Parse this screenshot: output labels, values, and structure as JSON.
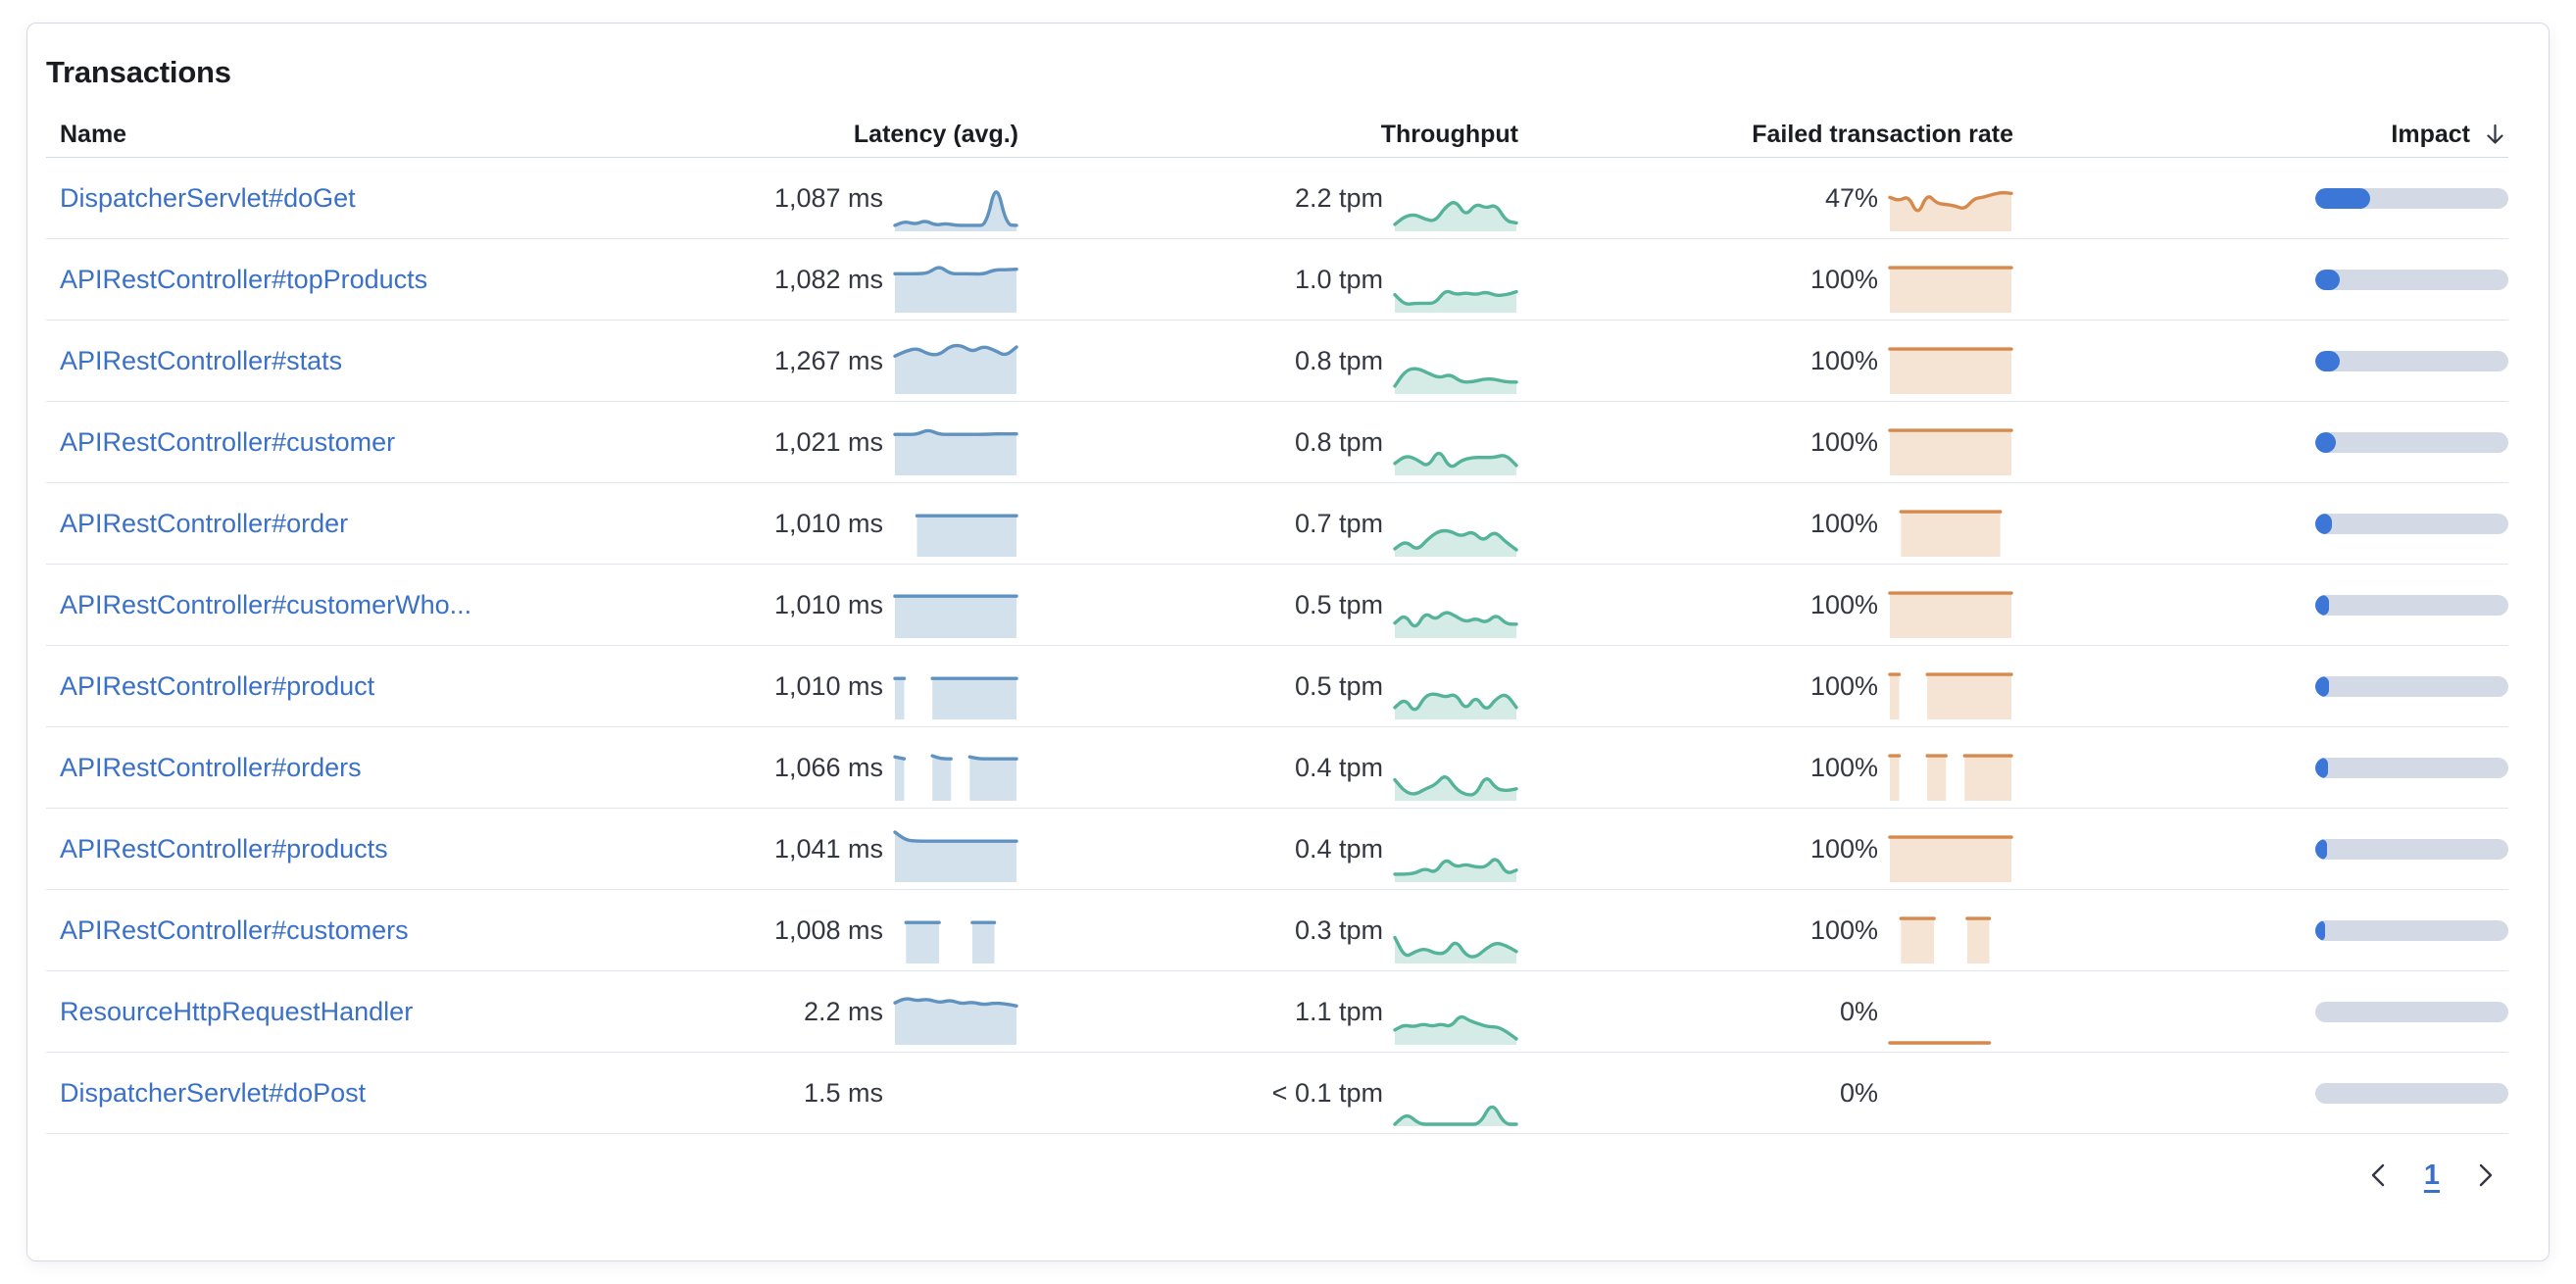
{
  "card": {
    "title": "Transactions"
  },
  "columns": {
    "name": "Name",
    "latency": "Latency (avg.)",
    "throughput": "Throughput",
    "failed": "Failed transaction rate",
    "impact": "Impact"
  },
  "pagination": {
    "current_page": "1"
  },
  "icons": {
    "sort": "sort-descending-arrow",
    "prev": "chevron-left",
    "next": "chevron-right"
  },
  "colors": {
    "link_blue": "#3A70C8",
    "impact_fill_blue": "#3C77D8",
    "impact_track_gray": "#D3DAE5",
    "latency_line": "#6092C0",
    "latency_fill": "rgba(96,146,192,0.28)",
    "throughput_line": "#54B399",
    "throughput_fill": "rgba(84,179,153,0.25)",
    "failed_line": "#D6894C",
    "failed_fill": "rgba(214,137,76,0.24)",
    "text_dark": "#343741",
    "heading_dark": "#1A1C21",
    "card_border": "#D3DAE6",
    "row_border": "#E0E5EE"
  },
  "rows": [
    {
      "name": "DispatcherServlet#doGet",
      "latency": "1,087 ms",
      "throughput": "2.2 tpm",
      "failed_rate": "47%",
      "impact_pct": 28.5,
      "latency_spark": [
        8,
        16,
        10,
        18,
        8,
        12,
        8,
        8,
        8,
        8,
        97,
        9,
        8
      ],
      "throughput_spark": [
        10,
        26,
        30,
        20,
        16,
        45,
        58,
        26,
        52,
        42,
        50,
        16,
        13
      ],
      "failed_spark": [
        64,
        57,
        67,
        27,
        72,
        52,
        50,
        47,
        40,
        62,
        64,
        70,
        74,
        72
      ]
    },
    {
      "name": "APIRestController#topProducts",
      "latency": "1,082 ms",
      "throughput": "1.0 tpm",
      "failed_rate": "100%",
      "impact_pct": 12.5,
      "latency_spark": [
        74,
        74,
        74,
        75,
        90,
        74,
        74,
        74,
        73,
        82,
        82,
        83
      ],
      "throughput_spark": [
        32,
        12,
        15,
        15,
        15,
        42,
        32,
        36,
        32,
        38,
        30,
        32,
        38
      ],
      "failed_spark": [
        86,
        86,
        86,
        86,
        86,
        86,
        86,
        86,
        86,
        86,
        86,
        86
      ]
    },
    {
      "name": "APIRestController#stats",
      "latency": "1,267 ms",
      "throughput": "0.8 tpm",
      "failed_rate": "100%",
      "impact_pct": 12.5,
      "latency_spark": [
        72,
        82,
        88,
        76,
        74,
        92,
        94,
        80,
        92,
        84,
        72,
        90
      ],
      "throughput_spark": [
        12,
        44,
        48,
        38,
        28,
        36,
        20,
        20,
        26,
        26,
        20,
        20
      ],
      "failed_spark": [
        86,
        86,
        86,
        86,
        86,
        86,
        86,
        86,
        86,
        86,
        86,
        86
      ]
    },
    {
      "name": "APIRestController#customer",
      "latency": "1,021 ms",
      "throughput": "0.8 tpm",
      "failed_rate": "100%",
      "impact_pct": 10.5,
      "latency_spark": [
        78,
        78,
        78,
        88,
        78,
        78,
        78,
        78,
        78,
        79,
        79,
        79
      ],
      "throughput_spark": [
        20,
        36,
        28,
        12,
        50,
        8,
        26,
        32,
        32,
        32,
        38,
        16
      ],
      "failed_spark": [
        86,
        86,
        86,
        86,
        86,
        86,
        86,
        86,
        86,
        86,
        86,
        86
      ]
    },
    {
      "name": "APIRestController#order",
      "latency": "1,010 ms",
      "throughput": "0.7 tpm",
      "failed_rate": "100%",
      "impact_pct": 8.5,
      "latency_spark": [
        null,
        null,
        78,
        78,
        78,
        78,
        78,
        78,
        78,
        78,
        78,
        78
      ],
      "throughput_spark": [
        12,
        28,
        8,
        32,
        48,
        48,
        36,
        48,
        26,
        48,
        26,
        10
      ],
      "failed_spark": [
        null,
        86,
        86,
        86,
        86,
        86,
        86,
        86,
        86,
        86,
        86,
        null
      ]
    },
    {
      "name": "APIRestController#customerWho...",
      "latency": "1,010 ms",
      "throughput": "0.5 tpm",
      "failed_rate": "100%",
      "impact_pct": 7,
      "latency_spark": [
        80,
        80,
        80,
        80,
        80,
        80,
        80,
        80,
        80,
        80,
        80,
        80
      ],
      "throughput_spark": [
        26,
        44,
        12,
        48,
        32,
        50,
        40,
        28,
        36,
        26,
        44,
        24,
        24
      ],
      "failed_spark": [
        86,
        86,
        86,
        86,
        86,
        86,
        86,
        86,
        86,
        86,
        86,
        86
      ]
    },
    {
      "name": "APIRestController#product",
      "latency": "1,010 ms",
      "throughput": "0.5 tpm",
      "failed_rate": "100%",
      "impact_pct": 7,
      "latency_spark": [
        78,
        78,
        null,
        null,
        78,
        78,
        78,
        78,
        78,
        78,
        78,
        78,
        78,
        78
      ],
      "throughput_spark": [
        20,
        38,
        8,
        44,
        48,
        40,
        48,
        14,
        44,
        12,
        38,
        48,
        20
      ],
      "failed_spark": [
        86,
        86,
        null,
        null,
        86,
        86,
        86,
        86,
        86,
        86,
        86,
        86,
        86,
        86
      ]
    },
    {
      "name": "APIRestController#orders",
      "latency": "1,066 ms",
      "throughput": "0.4 tpm",
      "failed_rate": "100%",
      "impact_pct": 6.5,
      "latency_spark": [
        84,
        80,
        null,
        null,
        86,
        80,
        80,
        null,
        84,
        80,
        80,
        80,
        80,
        80
      ],
      "throughput_spark": [
        38,
        14,
        8,
        20,
        28,
        50,
        20,
        8,
        8,
        48,
        20,
        16,
        20
      ],
      "failed_spark": [
        86,
        86,
        null,
        null,
        86,
        86,
        86,
        null,
        86,
        86,
        86,
        86,
        86,
        86
      ]
    },
    {
      "name": "APIRestController#products",
      "latency": "1,041 ms",
      "throughput": "0.4 tpm",
      "failed_rate": "100%",
      "impact_pct": 6,
      "latency_spark": [
        96,
        80,
        78,
        78,
        78,
        78,
        78,
        78,
        78,
        78,
        78,
        78
      ],
      "throughput_spark": [
        12,
        12,
        14,
        24,
        14,
        44,
        26,
        32,
        26,
        26,
        48,
        12,
        20
      ],
      "failed_spark": [
        86,
        86,
        86,
        86,
        86,
        86,
        86,
        86,
        86,
        86,
        86,
        86
      ]
    },
    {
      "name": "APIRestController#customers",
      "latency": "1,008 ms",
      "throughput": "0.3 tpm",
      "failed_rate": "100%",
      "impact_pct": 5,
      "latency_spark": [
        null,
        78,
        78,
        78,
        78,
        null,
        null,
        78,
        78,
        78,
        null,
        null
      ],
      "throughput_spark": [
        48,
        8,
        20,
        26,
        16,
        16,
        44,
        12,
        8,
        26,
        38,
        32,
        20
      ],
      "failed_spark": [
        null,
        86,
        86,
        86,
        86,
        null,
        null,
        86,
        86,
        86,
        null,
        null
      ]
    },
    {
      "name": "ResourceHttpRequestHandler",
      "latency": "2.2 ms",
      "throughput": "1.1 tpm",
      "failed_rate": "0%",
      "impact_pct": 0,
      "latency_spark": [
        80,
        90,
        84,
        88,
        80,
        86,
        78,
        82,
        76,
        80,
        78,
        74
      ],
      "throughput_spark": [
        26,
        36,
        32,
        38,
        33,
        38,
        32,
        56,
        44,
        38,
        32,
        32,
        22,
        8
      ],
      "failed_spark": [
        0,
        0,
        0,
        0,
        0,
        0,
        0,
        0,
        0,
        0,
        null,
        null
      ]
    },
    {
      "name": "DispatcherServlet#doPost",
      "latency": "1.5 ms",
      "throughput": "< 0.1 tpm",
      "failed_rate": "0%",
      "impact_pct": 0,
      "latency_spark": null,
      "throughput_spark": [
        0,
        22,
        0,
        0,
        0,
        0,
        0,
        0,
        46,
        0,
        0
      ],
      "failed_spark": null
    }
  ]
}
